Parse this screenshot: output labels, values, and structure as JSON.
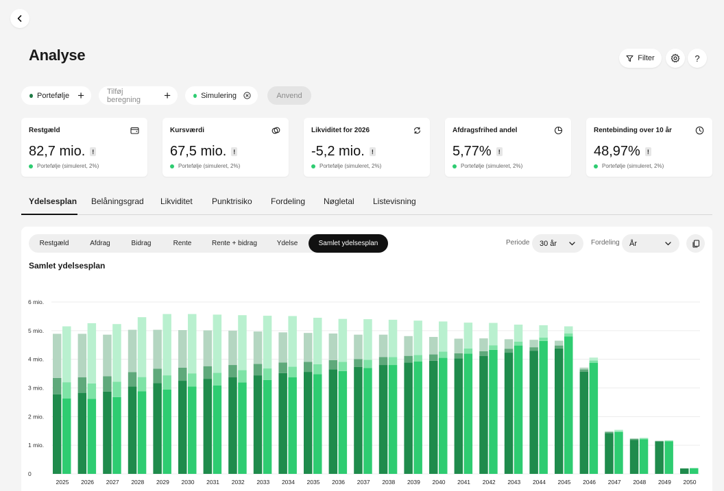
{
  "header": {
    "title": "Analyse",
    "filter_label": "Filter",
    "help_label": "?"
  },
  "chips": {
    "portfolio": "Portefølje",
    "add_calc": "Tilføj beregning",
    "simulation": "Simulering",
    "apply": "Anvend"
  },
  "colors": {
    "accent_dark": "#1f8b4c",
    "accent_light": "#2ecc71"
  },
  "cards": [
    {
      "title": "Restgæld",
      "value": "82,7 mio.",
      "sub": "Portefølje (simuleret, 2%)",
      "icon": "wallet-icon"
    },
    {
      "title": "Kursværdi",
      "value": "67,5 mio.",
      "sub": "Portefølje (simuleret, 2%)",
      "icon": "coins-icon"
    },
    {
      "title": "Likviditet for 2026",
      "value": "-5,2 mio.",
      "sub": "Portefølje (simuleret, 2%)",
      "icon": "refresh-icon"
    },
    {
      "title": "Afdragsfrihed andel",
      "value": "5,77%",
      "sub": "Portefølje (simuleret, 2%)",
      "icon": "pie-icon"
    },
    {
      "title": "Rentebinding over 10 år",
      "value": "48,97%",
      "sub": "Portefølje (simuleret, 2%)",
      "icon": "clock-icon"
    }
  ],
  "tabs": [
    "Ydelsesplan",
    "Belåningsgrad",
    "Likviditet",
    "Punktrisiko",
    "Fordeling",
    "Nøgletal",
    "Listevisning"
  ],
  "segments": [
    "Restgæld",
    "Afdrag",
    "Bidrag",
    "Rente",
    "Rente + bidrag",
    "Ydelse",
    "Samlet ydelsesplan"
  ],
  "controls": {
    "period_label": "Periode",
    "period_value": "30 år",
    "distribution_label": "Fordeling",
    "distribution_value": "År"
  },
  "chart_data": {
    "type": "bar",
    "title": "Samlet ydelsesplan",
    "ylim": [
      0,
      6000000
    ],
    "y_ticks": [
      {
        "value": 0,
        "label": "0"
      },
      {
        "value": 1000000,
        "label": "1 mio."
      },
      {
        "value": 2000000,
        "label": "2 mio."
      },
      {
        "value": 3000000,
        "label": "3 mio."
      },
      {
        "value": 4000000,
        "label": "4 mio."
      },
      {
        "value": 5000000,
        "label": "5 mio."
      },
      {
        "value": 6000000,
        "label": "6 mio."
      }
    ],
    "categories": [
      "2025",
      "2026",
      "2027",
      "2028",
      "2029",
      "2030",
      "2031",
      "2032",
      "2033",
      "2034",
      "2035",
      "2036",
      "2037",
      "2038",
      "2039",
      "2040",
      "2041",
      "2042",
      "2043",
      "2044",
      "2045",
      "2046",
      "2047",
      "2048",
      "2049",
      "2050"
    ],
    "stacked": true,
    "groups": [
      {
        "color_family": "dark",
        "segments": [
          {
            "values": [
              2780000,
              2830000,
              2870000,
              3050000,
              3170000,
              3250000,
              3320000,
              3370000,
              3440000,
              3520000,
              3560000,
              3650000,
              3730000,
              3800000,
              3890000,
              3950000,
              4030000,
              4120000,
              4230000,
              4300000,
              4380000,
              3570000,
              1420000,
              1190000,
              1130000,
              190000
            ]
          },
          {
            "values": [
              570000,
              540000,
              540000,
              500000,
              500000,
              460000,
              440000,
              430000,
              400000,
              370000,
              350000,
              320000,
              280000,
              280000,
              230000,
              220000,
              180000,
              160000,
              140000,
              120000,
              100000,
              80000,
              40000,
              30000,
              20000,
              0
            ]
          },
          {
            "values": [
              1540000,
              1520000,
              1450000,
              1480000,
              1360000,
              1310000,
              1250000,
              1200000,
              1130000,
              1050000,
              1010000,
              930000,
              850000,
              780000,
              690000,
              610000,
              510000,
              450000,
              330000,
              260000,
              170000,
              60000,
              30000,
              20000,
              10000,
              0
            ]
          }
        ]
      },
      {
        "color_family": "light",
        "segments": [
          {
            "values": [
              2630000,
              2620000,
              2680000,
              2880000,
              2940000,
              3050000,
              3090000,
              3190000,
              3280000,
              3370000,
              3480000,
              3590000,
              3700000,
              3800000,
              3920000,
              4050000,
              4200000,
              4330000,
              4480000,
              4640000,
              4800000,
              3880000,
              1460000,
              1210000,
              1140000,
              200000
            ]
          },
          {
            "values": [
              570000,
              540000,
              540000,
              500000,
              500000,
              460000,
              440000,
              430000,
              400000,
              370000,
              350000,
              320000,
              280000,
              280000,
              230000,
              220000,
              180000,
              160000,
              140000,
              120000,
              100000,
              80000,
              40000,
              30000,
              20000,
              0
            ]
          },
          {
            "values": [
              1950000,
              2100000,
              2010000,
              2090000,
              2140000,
              2070000,
              2030000,
              1920000,
              1840000,
              1770000,
              1620000,
              1500000,
              1420000,
              1300000,
              1200000,
              1050000,
              900000,
              780000,
              590000,
              430000,
              250000,
              100000,
              40000,
              20000,
              10000,
              0
            ]
          }
        ]
      }
    ]
  }
}
